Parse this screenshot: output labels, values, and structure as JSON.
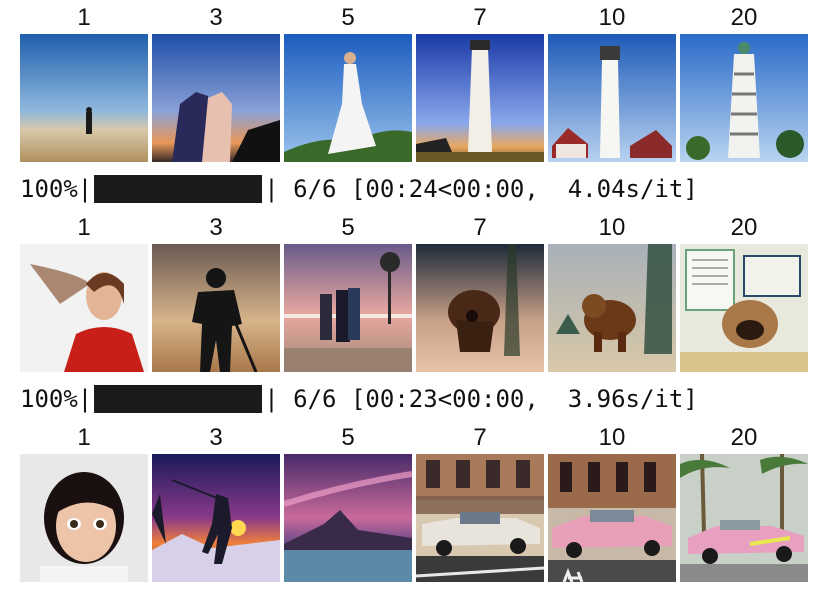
{
  "grids": [
    {
      "labels": [
        "1",
        "3",
        "5",
        "7",
        "10",
        "20"
      ],
      "images": [
        {
          "icon": "beach-walker-image"
        },
        {
          "icon": "couple-sunset-image"
        },
        {
          "icon": "bride-sky-image"
        },
        {
          "icon": "lighthouse-dusk-image"
        },
        {
          "icon": "lighthouse-house-image"
        },
        {
          "icon": "pagoda-tower-image"
        }
      ]
    },
    {
      "labels": [
        "1",
        "3",
        "5",
        "7",
        "10",
        "20"
      ],
      "images": [
        {
          "icon": "woman-red-shirt-image"
        },
        {
          "icon": "silhouette-man-image"
        },
        {
          "icon": "people-boardwalk-image"
        },
        {
          "icon": "dog-sunset-image"
        },
        {
          "icon": "bear-forest-image"
        },
        {
          "icon": "pug-papers-image"
        }
      ]
    },
    {
      "labels": [
        "1",
        "3",
        "5",
        "7",
        "10",
        "20"
      ],
      "images": [
        {
          "icon": "child-portrait-image"
        },
        {
          "icon": "snow-sunset-figure-image"
        },
        {
          "icon": "mountain-lake-sky-image"
        },
        {
          "icon": "white-car-street-image"
        },
        {
          "icon": "pink-car-street-image"
        },
        {
          "icon": "pink-car-palms-image"
        }
      ]
    }
  ],
  "progress": [
    {
      "percent": "100%",
      "bar_fraction": 1.0,
      "left_pipe": "|",
      "right_pipe": "|",
      "count": "6/6",
      "timing": "[00:24<00:00,",
      "rate": "4.04s/it]"
    },
    {
      "percent": "100%",
      "bar_fraction": 1.0,
      "left_pipe": "|",
      "right_pipe": "|",
      "count": "6/6",
      "timing": "[00:23<00:00,",
      "rate": "3.96s/it]"
    }
  ]
}
